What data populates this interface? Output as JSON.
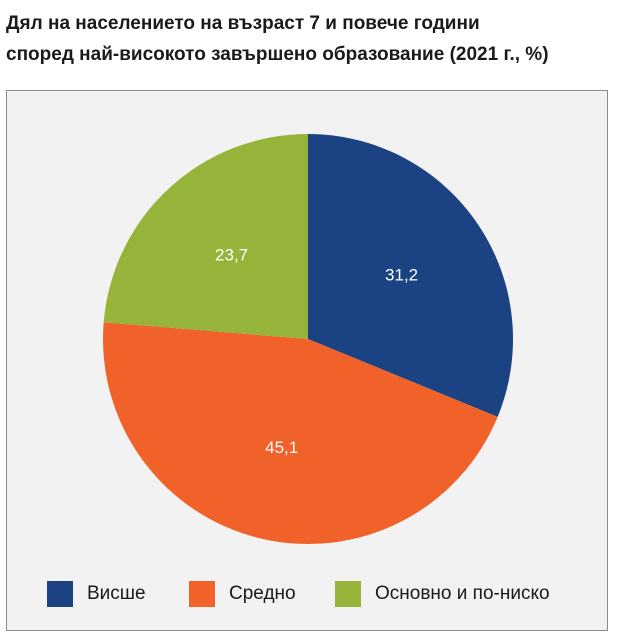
{
  "title_lines": [
    "Дял на населението на възраст 7 и повече години",
    "според най-високото завършено образование (2021 г., %)"
  ],
  "chart_data": {
    "type": "pie",
    "title": "Дял на населението на възраст 7 и повече години според най-високото завършено образование (2021 г., %)",
    "legend_position": "bottom",
    "slices": [
      {
        "name": "Висше",
        "value": 31.2,
        "label": "31,2",
        "color": "#1b4283"
      },
      {
        "name": "Средно",
        "value": 45.1,
        "label": "45,1",
        "color": "#f0622a"
      },
      {
        "name": "Основно и по-ниско",
        "value": 23.7,
        "label": "23,7",
        "color": "#96b43a"
      }
    ]
  }
}
